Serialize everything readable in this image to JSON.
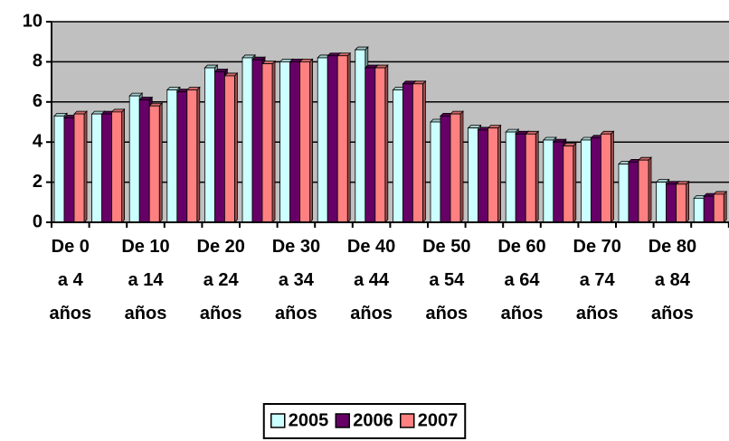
{
  "chart_data": {
    "type": "bar",
    "categories": [
      "De 0 a 4 años",
      null,
      "De 10 a 14 años",
      null,
      "De 20 a 24 años",
      null,
      "De 30 a 34 años",
      null,
      "De 40 a 44 años",
      null,
      "De 50 a 54 años",
      null,
      "De 60 a 64 años",
      null,
      "De 70 a 74 años",
      null,
      "De 80 a 84 años",
      null
    ],
    "series": [
      {
        "name": "2005",
        "color": "#ccffff",
        "values": [
          5.3,
          5.4,
          6.3,
          6.6,
          7.7,
          8.2,
          8.0,
          8.2,
          8.6,
          6.6,
          5.0,
          4.7,
          4.5,
          4.1,
          4.1,
          2.9,
          2.0,
          1.2
        ]
      },
      {
        "name": "2006",
        "color": "#660066",
        "values": [
          5.2,
          5.4,
          6.1,
          6.5,
          7.5,
          8.1,
          8.0,
          8.3,
          7.7,
          6.9,
          5.3,
          4.6,
          4.4,
          4.0,
          4.2,
          3.0,
          1.9,
          1.3
        ]
      },
      {
        "name": "2007",
        "color": "#ff8080",
        "values": [
          5.4,
          5.5,
          5.8,
          6.6,
          7.3,
          7.9,
          8.0,
          8.3,
          7.7,
          6.9,
          5.4,
          4.7,
          4.4,
          3.8,
          4.4,
          3.1,
          1.9,
          1.4
        ]
      }
    ],
    "ylim": [
      0,
      10
    ],
    "yticks": [
      0,
      2,
      4,
      6,
      8,
      10
    ],
    "grid": true,
    "legend": "bottom"
  }
}
